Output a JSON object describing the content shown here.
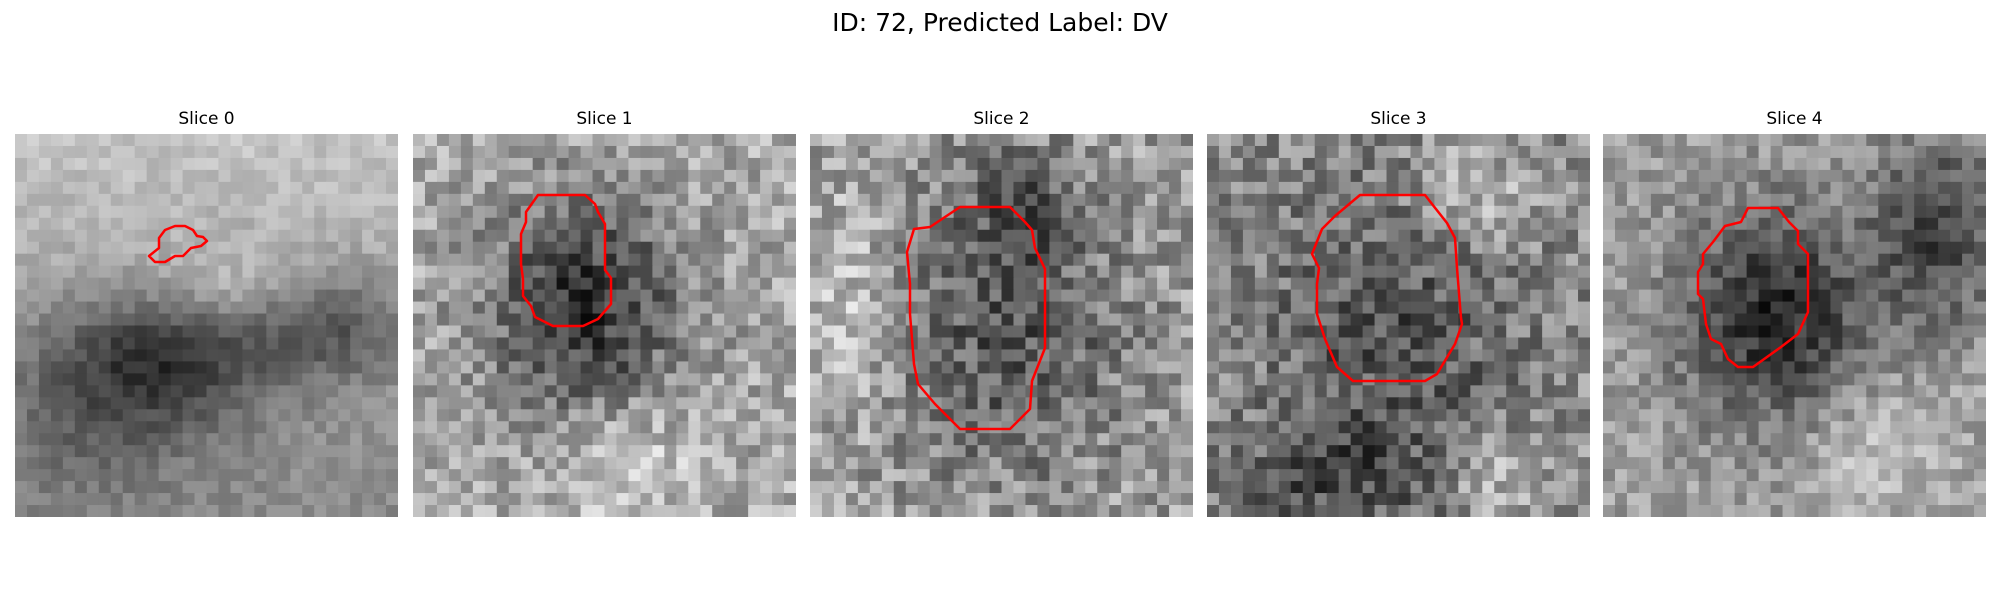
{
  "figure": {
    "title": "ID: 72, Predicted Label: DV"
  },
  "panels": [
    {
      "title": "Slice 0",
      "contour_color": "#ff0000"
    },
    {
      "title": "Slice 1",
      "contour_color": "#ff0000"
    },
    {
      "title": "Slice 2",
      "contour_color": "#ff0000"
    },
    {
      "title": "Slice 3",
      "contour_color": "#ff0000"
    },
    {
      "title": "Slice 4",
      "contour_color": "#ff0000"
    }
  ]
}
